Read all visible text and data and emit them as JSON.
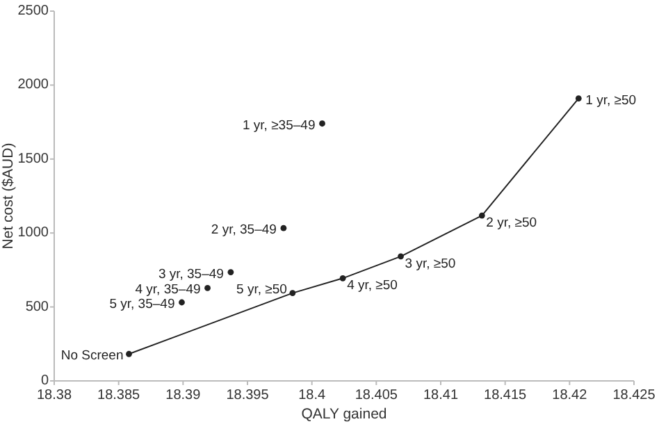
{
  "chart_data": {
    "type": "line",
    "xlabel": "QALY gained",
    "ylabel": "Net cost ($AUD)",
    "xlim": [
      18.38,
      18.425
    ],
    "xticks": [
      18.38,
      18.385,
      18.39,
      18.395,
      18.4,
      18.405,
      18.41,
      18.415,
      18.42,
      18.425
    ],
    "ylim": [
      0,
      2500
    ],
    "yticks": [
      0,
      500,
      1000,
      1500,
      2000,
      2500
    ],
    "grid": false,
    "marker": "circle",
    "line_style": "solid",
    "series": [
      {
        "color": "#222222",
        "x": [
          18.3858,
          18.3985,
          18.4024,
          18.4069,
          18.4132,
          18.4207
        ],
        "values": [
          182,
          594,
          694,
          842,
          1118,
          1910
        ]
      },
      {
        "type": "scatter",
        "color": "#222222",
        "x": [
          18.4008,
          18.3978,
          18.3937,
          18.3919,
          18.3899
        ],
        "values": [
          1740,
          1033,
          735,
          628,
          531
        ]
      }
    ],
    "annotations": [
      {
        "text": "No Screen",
        "x": 18.3858,
        "y": 182
      },
      {
        "text": "5 yr, ≥50",
        "x": 18.3985,
        "y": 594
      },
      {
        "text": "4 yr, ≥50",
        "x": 18.4024,
        "y": 694
      },
      {
        "text": "3 yr, ≥50",
        "x": 18.4069,
        "y": 842
      },
      {
        "text": "2 yr, ≥50",
        "x": 18.4132,
        "y": 1118
      },
      {
        "text": "1 yr, ≥50",
        "x": 18.4207,
        "y": 1910
      },
      {
        "text": "1 yr, ≥35–49",
        "x": 18.4008,
        "y": 1740
      },
      {
        "text": "2 yr, 35–49",
        "x": 18.3978,
        "y": 1033
      },
      {
        "text": "3 yr, 35–49",
        "x": 18.3937,
        "y": 735
      },
      {
        "text": "4 yr, 35–49",
        "x": 18.3919,
        "y": 628
      },
      {
        "text": "5 yr, 35–49",
        "x": 18.3899,
        "y": 531
      }
    ]
  }
}
